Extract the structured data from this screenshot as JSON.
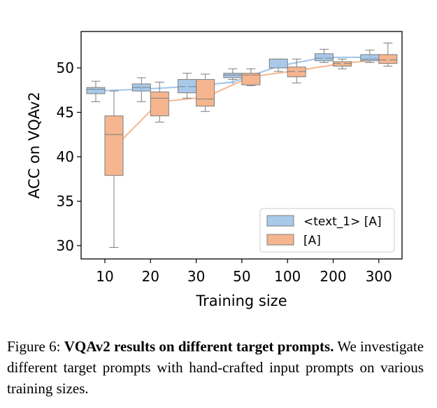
{
  "chart_data": {
    "type": "box",
    "xlabel": "Training size",
    "ylabel": "ACC on VQAv2",
    "categories": [
      "10",
      "20",
      "30",
      "50",
      "100",
      "200",
      "300"
    ],
    "ylim": [
      28.5,
      54.1
    ],
    "yticks": [
      30,
      35,
      40,
      45,
      50
    ],
    "legend_position": "lower-right",
    "grid": false,
    "series": [
      {
        "name": "<text_1> [A]",
        "color": "#a9c9ea",
        "edge_color": "#7d7d7d",
        "line_color": "#9fc4ea",
        "means": [
          47.4,
          47.6,
          47.9,
          48.4,
          50.2,
          51.2,
          51.2
        ],
        "boxes": [
          {
            "whislo": 46.2,
            "q1": 47.1,
            "med": 47.6,
            "q3": 47.8,
            "whishi": 48.5
          },
          {
            "whislo": 46.2,
            "q1": 47.4,
            "med": 47.8,
            "q3": 48.2,
            "whishi": 48.9
          },
          {
            "whislo": 46.6,
            "q1": 47.2,
            "med": 47.9,
            "q3": 48.7,
            "whishi": 49.4
          },
          {
            "whislo": 48.7,
            "q1": 48.9,
            "med": 49.2,
            "q3": 49.4,
            "whishi": 49.9
          },
          {
            "whislo": 49.6,
            "q1": 50.0,
            "med": 50.0,
            "q3": 51.0,
            "whishi": 51.0
          },
          {
            "whislo": 50.6,
            "q1": 50.8,
            "med": 51.1,
            "q3": 51.6,
            "whishi": 52.1
          },
          {
            "whislo": 50.6,
            "q1": 50.8,
            "med": 51.0,
            "q3": 51.5,
            "whishi": 52.0
          }
        ]
      },
      {
        "name": "[A]",
        "color": "#f5b68f",
        "edge_color": "#7d7d7d",
        "line_color": "#f5b68f",
        "means": [
          41.0,
          46.2,
          46.7,
          49.0,
          49.7,
          50.5,
          51.0
        ],
        "boxes": [
          {
            "whislo": 29.8,
            "q1": 37.9,
            "med": 42.5,
            "q3": 44.6,
            "whishi": 47.4
          },
          {
            "whislo": 43.9,
            "q1": 44.6,
            "med": 46.6,
            "q3": 47.3,
            "whishi": 48.4
          },
          {
            "whislo": 45.1,
            "q1": 45.7,
            "med": 46.5,
            "q3": 48.7,
            "whishi": 49.3
          },
          {
            "whislo": 48.0,
            "q1": 48.1,
            "med": 49.2,
            "q3": 49.4,
            "whishi": 49.9
          },
          {
            "whislo": 48.3,
            "q1": 49.0,
            "med": 49.6,
            "q3": 50.1,
            "whishi": 51.0
          },
          {
            "whislo": 49.9,
            "q1": 50.2,
            "med": 50.5,
            "q3": 50.7,
            "whishi": 51.0
          },
          {
            "whislo": 50.2,
            "q1": 50.5,
            "med": 50.9,
            "q3": 51.5,
            "whishi": 52.8
          }
        ]
      }
    ]
  },
  "caption": {
    "label": "Figure 6:",
    "title": "VQAv2 results on different target prompts.",
    "body": "We investigate different target prompts with hand-crafted input prompts on various training sizes."
  }
}
